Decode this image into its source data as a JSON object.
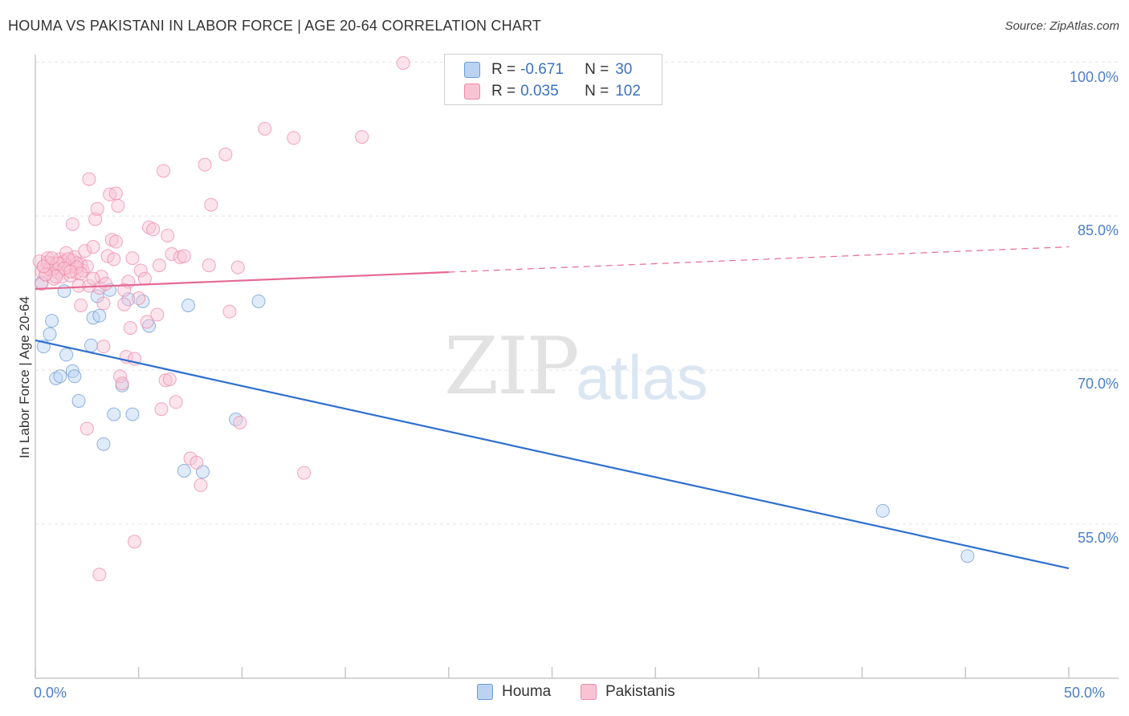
{
  "header": {
    "title": "HOUMA VS PAKISTANI IN LABOR FORCE | AGE 20-64 CORRELATION CHART",
    "source": "Source: ZipAtlas.com"
  },
  "watermark": {
    "zip": "ZIP",
    "atlas": "atlas"
  },
  "legend": {
    "houma": {
      "r_label": "R = ",
      "r_value": "-0.671",
      "n_label": "N = ",
      "n_value": "30"
    },
    "pakistanis": {
      "r_label": "R = ",
      "r_value": "0.035",
      "n_label": "N = ",
      "n_value": "102"
    }
  },
  "bottom_legend": [
    "Houma",
    "Pakistanis"
  ],
  "colors": {
    "houma_fill": "#b9d3f1",
    "houma_stroke": "#6d9ad6",
    "houma_line": "#2f6fcf",
    "pak_fill": "#f8c4d4",
    "pak_stroke": "#ec8aa8",
    "pak_line": "#e56a92"
  },
  "chart_data": {
    "type": "scatter",
    "title": "HOUMA VS PAKISTANI IN LABOR FORCE | AGE 20-64 CORRELATION CHART",
    "xlabel": "",
    "ylabel": "In Labor Force | Age 20-64",
    "xlim": [
      0,
      50
    ],
    "ylim": [
      40,
      101.5
    ],
    "x_ticks": [
      "0.0%",
      "50.0%"
    ],
    "y_ticks": [
      {
        "value": 55,
        "label": "55.0%"
      },
      {
        "value": 70,
        "label": "70.0%"
      },
      {
        "value": 85,
        "label": "85.0%"
      },
      {
        "value": 100,
        "label": "100.0%"
      }
    ],
    "grid": true,
    "series": [
      {
        "name": "Houma",
        "points": [
          [
            0.3,
            78.5
          ],
          [
            0.4,
            72.3
          ],
          [
            0.7,
            73.5
          ],
          [
            0.8,
            74.8
          ],
          [
            1.0,
            69.2
          ],
          [
            1.2,
            69.4
          ],
          [
            1.4,
            77.7
          ],
          [
            1.5,
            71.5
          ],
          [
            1.8,
            69.9
          ],
          [
            1.9,
            69.4
          ],
          [
            2.1,
            67.0
          ],
          [
            2.7,
            72.4
          ],
          [
            2.8,
            75.1
          ],
          [
            3.1,
            75.3
          ],
          [
            3.0,
            77.2
          ],
          [
            3.3,
            62.8
          ],
          [
            3.6,
            77.8
          ],
          [
            3.8,
            65.7
          ],
          [
            4.2,
            68.5
          ],
          [
            4.5,
            76.9
          ],
          [
            4.7,
            65.7
          ],
          [
            5.2,
            76.7
          ],
          [
            5.5,
            74.3
          ],
          [
            7.2,
            60.2
          ],
          [
            7.4,
            76.3
          ],
          [
            8.1,
            60.1
          ],
          [
            9.7,
            65.2
          ],
          [
            10.8,
            76.7
          ],
          [
            41.0,
            56.3
          ],
          [
            45.1,
            51.9
          ]
        ],
        "trend": {
          "x": [
            0,
            50
          ],
          "y": [
            72.9,
            50.7
          ]
        }
      },
      {
        "name": "Pakistanis",
        "points": [
          [
            0.2,
            80.6
          ],
          [
            0.3,
            79.6
          ],
          [
            0.3,
            78.4
          ],
          [
            0.4,
            80.1
          ],
          [
            0.5,
            79.3
          ],
          [
            0.6,
            80.9
          ],
          [
            0.7,
            79.8
          ],
          [
            0.8,
            80.4
          ],
          [
            0.9,
            78.9
          ],
          [
            1.0,
            80.3
          ],
          [
            1.1,
            79.5
          ],
          [
            1.2,
            80.8
          ],
          [
            1.3,
            79.1
          ],
          [
            1.4,
            80.6
          ],
          [
            1.5,
            81.4
          ],
          [
            1.6,
            80.0
          ],
          [
            1.7,
            79.2
          ],
          [
            1.8,
            80.7
          ],
          [
            1.9,
            81.0
          ],
          [
            2.0,
            79.5
          ],
          [
            2.1,
            78.2
          ],
          [
            2.2,
            80.3
          ],
          [
            2.3,
            79.7
          ],
          [
            2.4,
            81.6
          ],
          [
            2.5,
            80.1
          ],
          [
            1.8,
            84.2
          ],
          [
            2.0,
            80.4
          ],
          [
            2.6,
            88.6
          ],
          [
            2.8,
            82.0
          ],
          [
            2.9,
            84.7
          ],
          [
            3.0,
            85.7
          ],
          [
            3.1,
            78.0
          ],
          [
            3.2,
            79.1
          ],
          [
            3.3,
            76.5
          ],
          [
            3.5,
            81.1
          ],
          [
            3.6,
            87.1
          ],
          [
            3.7,
            82.7
          ],
          [
            3.8,
            80.8
          ],
          [
            3.9,
            87.2
          ],
          [
            4.0,
            86.0
          ],
          [
            4.1,
            69.4
          ],
          [
            4.2,
            68.7
          ],
          [
            4.3,
            76.4
          ],
          [
            4.4,
            71.3
          ],
          [
            4.5,
            78.6
          ],
          [
            4.6,
            74.1
          ],
          [
            4.7,
            80.9
          ],
          [
            4.8,
            71.1
          ],
          [
            5.0,
            77.0
          ],
          [
            5.1,
            79.7
          ],
          [
            5.3,
            78.9
          ],
          [
            5.4,
            74.7
          ],
          [
            5.5,
            83.9
          ],
          [
            5.7,
            83.7
          ],
          [
            5.9,
            75.4
          ],
          [
            6.0,
            80.2
          ],
          [
            6.1,
            66.2
          ],
          [
            6.2,
            89.4
          ],
          [
            6.3,
            69.0
          ],
          [
            6.4,
            83.1
          ],
          [
            6.5,
            69.1
          ],
          [
            6.6,
            81.3
          ],
          [
            6.8,
            66.9
          ],
          [
            7.0,
            81.0
          ],
          [
            7.2,
            81.1
          ],
          [
            7.5,
            61.4
          ],
          [
            7.8,
            61.0
          ],
          [
            8.0,
            58.8
          ],
          [
            8.2,
            90.0
          ],
          [
            8.4,
            80.2
          ],
          [
            8.5,
            86.1
          ],
          [
            9.2,
            91.0
          ],
          [
            9.4,
            75.7
          ],
          [
            9.8,
            80.0
          ],
          [
            9.9,
            64.9
          ],
          [
            11.1,
            93.5
          ],
          [
            12.5,
            92.6
          ],
          [
            13.0,
            60.0
          ],
          [
            15.8,
            92.7
          ],
          [
            17.8,
            99.9
          ],
          [
            4.8,
            53.3
          ],
          [
            3.1,
            50.1
          ],
          [
            2.5,
            64.3
          ],
          [
            2.2,
            76.3
          ],
          [
            2.6,
            78.2
          ],
          [
            3.4,
            78.4
          ],
          [
            1.6,
            80.8
          ],
          [
            0.9,
            79.9
          ],
          [
            1.1,
            80.4
          ],
          [
            0.6,
            80.5
          ],
          [
            1.4,
            79.9
          ],
          [
            2.0,
            80.0
          ],
          [
            2.2,
            79.4
          ],
          [
            1.7,
            79.6
          ],
          [
            2.8,
            78.9
          ],
          [
            3.3,
            72.3
          ],
          [
            3.9,
            82.5
          ],
          [
            4.3,
            77.8
          ],
          [
            1.0,
            79.1
          ],
          [
            0.5,
            79.3
          ],
          [
            0.4,
            80.1
          ],
          [
            0.8,
            80.9
          ]
        ],
        "trend": {
          "x": [
            0,
            50
          ],
          "y": [
            77.9,
            82.0
          ],
          "solid_until_x": 20
        }
      }
    ]
  }
}
